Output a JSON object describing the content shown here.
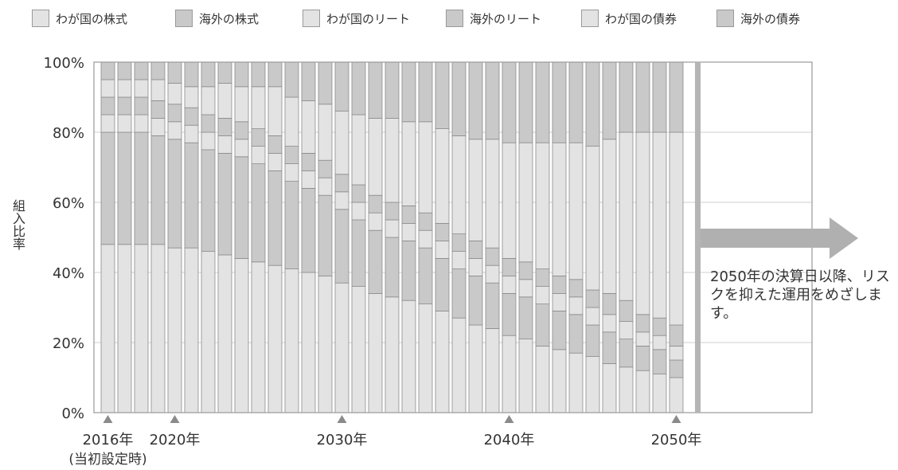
{
  "legend": [
    {
      "label": "わが国の株式",
      "color": "#e3e3e3"
    },
    {
      "label": "海外の株式",
      "color": "#c9c9c9"
    },
    {
      "label": "わが国のリート",
      "color": "#e3e3e3"
    },
    {
      "label": "海外のリート",
      "color": "#c9c9c9"
    },
    {
      "label": "わが国の債券",
      "color": "#e3e3e3"
    },
    {
      "label": "海外の債券",
      "color": "#c9c9c9"
    }
  ],
  "note": "2050年の決算日以降、リスクを抑えた運用をめざします。",
  "chart_data": {
    "type": "bar",
    "stacked": true,
    "ylabel": "組入比率",
    "ylim": [
      0,
      100
    ],
    "yticks": [
      "0%",
      "20%",
      "40%",
      "60%",
      "80%",
      "100%"
    ],
    "grid": true,
    "categories": [
      2016,
      2017,
      2018,
      2019,
      2020,
      2021,
      2022,
      2023,
      2024,
      2025,
      2026,
      2027,
      2028,
      2029,
      2030,
      2031,
      2032,
      2033,
      2034,
      2035,
      2036,
      2037,
      2038,
      2039,
      2040,
      2041,
      2042,
      2043,
      2044,
      2045,
      2046,
      2047,
      2048,
      2049,
      2050
    ],
    "x_tick_labels": [
      {
        "year": 2016,
        "label": "2016年",
        "sublabel": "(当初設定時)"
      },
      {
        "year": 2020,
        "label": "2020年"
      },
      {
        "year": 2030,
        "label": "2030年"
      },
      {
        "year": 2040,
        "label": "2040年"
      },
      {
        "year": 2050,
        "label": "2050年"
      }
    ],
    "series": [
      {
        "name": "わが国の株式",
        "color": "#e3e3e3",
        "values": [
          48,
          48,
          48,
          48,
          47,
          47,
          46,
          45,
          44,
          43,
          42,
          41,
          40,
          39,
          37,
          36,
          34,
          33,
          32,
          31,
          29,
          27,
          25,
          24,
          22,
          21,
          19,
          18,
          17,
          16,
          14,
          13,
          12,
          11,
          10
        ]
      },
      {
        "name": "海外の株式",
        "color": "#c9c9c9",
        "values": [
          32,
          32,
          32,
          31,
          31,
          30,
          29,
          29,
          29,
          28,
          27,
          25,
          24,
          23,
          21,
          19,
          18,
          17,
          17,
          16,
          15,
          14,
          14,
          13,
          12,
          12,
          12,
          11,
          11,
          9,
          9,
          8,
          7,
          7,
          5
        ]
      },
      {
        "name": "わが国のリート",
        "color": "#e3e3e3",
        "values": [
          5,
          5,
          5,
          5,
          5,
          5,
          5,
          5,
          5,
          5,
          5,
          5,
          5,
          5,
          5,
          5,
          5,
          5,
          5,
          5,
          5,
          5,
          5,
          5,
          5,
          5,
          5,
          5,
          5,
          5,
          5,
          5,
          4,
          4,
          4
        ]
      },
      {
        "name": "海外のリート",
        "color": "#c9c9c9",
        "values": [
          5,
          5,
          5,
          5,
          5,
          5,
          5,
          5,
          5,
          5,
          5,
          5,
          5,
          5,
          5,
          5,
          5,
          5,
          5,
          5,
          5,
          5,
          5,
          5,
          5,
          5,
          5,
          5,
          5,
          5,
          6,
          6,
          5,
          5,
          6
        ]
      },
      {
        "name": "わが国の債券",
        "color": "#e3e3e3",
        "values": [
          5,
          5,
          5,
          6,
          6,
          6,
          8,
          10,
          10,
          12,
          14,
          14,
          15,
          16,
          18,
          20,
          22,
          24,
          24,
          26,
          27,
          28,
          29,
          31,
          33,
          34,
          36,
          38,
          39,
          41,
          44,
          48,
          52,
          53,
          55
        ]
      },
      {
        "name": "海外の債券",
        "color": "#c9c9c9",
        "values": [
          5,
          5,
          5,
          5,
          6,
          7,
          7,
          6,
          7,
          7,
          7,
          10,
          11,
          12,
          14,
          15,
          16,
          16,
          17,
          17,
          19,
          21,
          22,
          22,
          23,
          23,
          23,
          23,
          23,
          24,
          22,
          20,
          20,
          20,
          20
        ]
      }
    ]
  }
}
